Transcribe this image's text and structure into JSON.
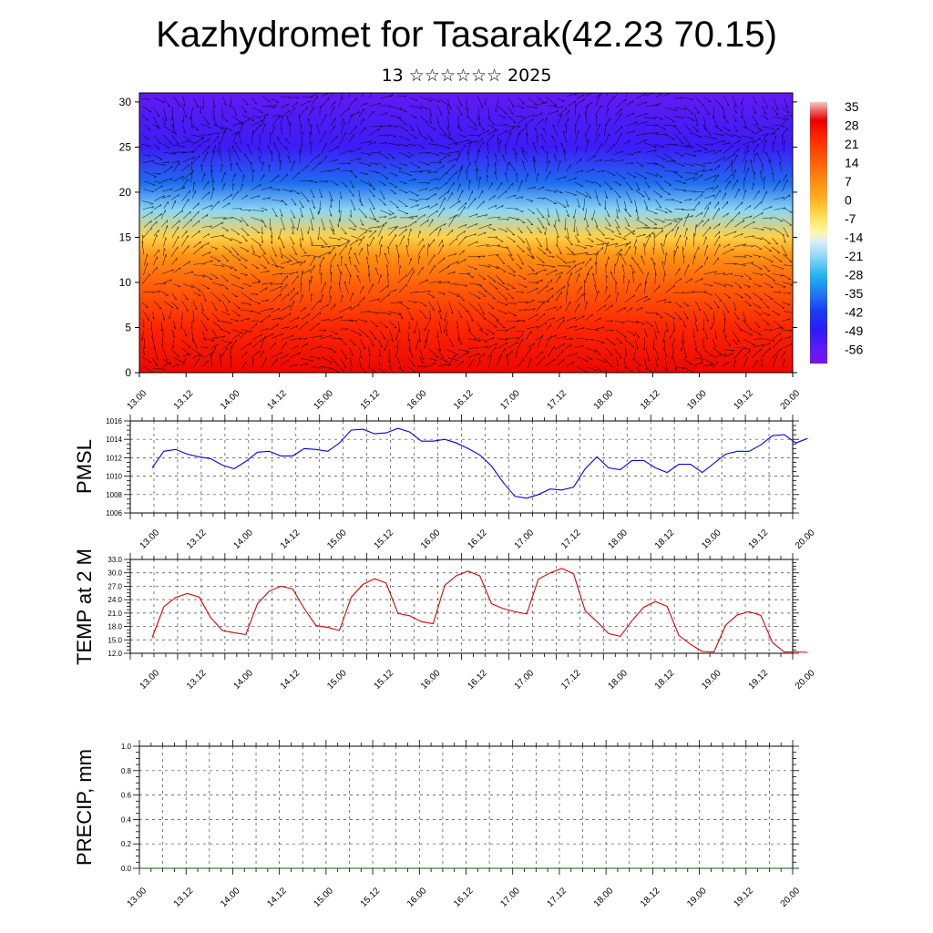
{
  "title": "Kazhydromet for Tasarak(42.23 70.15)",
  "subtitle": "13 ☆☆☆☆☆☆ 2025",
  "colors": {
    "pmsl_line": "#0000ff",
    "temp_line": "#e00000",
    "precip_line": "#006400",
    "arrows": "#000000"
  },
  "chart_data": [
    {
      "type": "heatmap",
      "name_hint": "vertical-cross-section",
      "x_ticks": [
        "13.00",
        "13.12",
        "14.00",
        "14.12",
        "15.00",
        "15.12",
        "16.00",
        "16.12",
        "17.00",
        "17.12",
        "18.00",
        "18.12",
        "19.00",
        "19.12",
        "20.00"
      ],
      "y_ticks": [
        "0",
        "5",
        "10",
        "15",
        "20",
        "25",
        "30"
      ],
      "ylim": [
        0,
        31
      ],
      "colorbar_labels": [
        "35",
        "28",
        "21",
        "14",
        "7",
        "0",
        "-7",
        "-14",
        "-21",
        "-28",
        "-35",
        "-42",
        "-49",
        "-56"
      ],
      "colorbar_range": [
        -60,
        38
      ],
      "overlay": "wind vectors",
      "temperature_profile": [
        {
          "level": 0,
          "value": 30
        },
        {
          "level": 5,
          "value": 25
        },
        {
          "level": 10,
          "value": 15
        },
        {
          "level": 13,
          "value": 7
        },
        {
          "level": 15,
          "value": -3
        },
        {
          "level": 18,
          "value": -20
        },
        {
          "level": 21,
          "value": -35
        },
        {
          "level": 25,
          "value": -50
        },
        {
          "level": 28,
          "value": -52
        },
        {
          "level": 31,
          "value": -56
        }
      ]
    },
    {
      "type": "line",
      "ylabel": "PMSL",
      "ylim": [
        1006,
        1016
      ],
      "y_ticks": [
        "1016",
        "1014",
        "1012",
        "1010",
        "1008",
        "1006"
      ],
      "x_ticks": [
        "13.00",
        "13.12",
        "14.00",
        "14.12",
        "15.00",
        "15.12",
        "16.00",
        "16.12",
        "17.00",
        "17.12",
        "18.00",
        "18.12",
        "19.00",
        "19.12",
        "20.00"
      ],
      "grid": true,
      "x_step_hours": 3,
      "values": [
        1010.9,
        1012.7,
        1012.9,
        1012.4,
        1012.1,
        1011.9,
        1011.2,
        1010.8,
        1011.6,
        1012.6,
        1012.7,
        1012.2,
        1012.2,
        1013.0,
        1012.9,
        1012.7,
        1013.6,
        1015.0,
        1015.1,
        1014.6,
        1014.7,
        1015.2,
        1014.8,
        1013.8,
        1013.8,
        1014.0,
        1013.6,
        1013.0,
        1012.3,
        1011.1,
        1009.3,
        1007.8,
        1007.6,
        1008.0,
        1008.6,
        1008.5,
        1008.8,
        1010.8,
        1012.1,
        1010.9,
        1010.7,
        1011.7,
        1011.7,
        1010.9,
        1010.4,
        1011.3,
        1011.3,
        1010.4,
        1011.4,
        1012.4,
        1012.7,
        1012.7,
        1013.4,
        1014.4,
        1014.5,
        1013.6,
        1014.1
      ]
    },
    {
      "type": "line",
      "ylabel": "TEMP at 2 M",
      "ylim": [
        12,
        33
      ],
      "y_ticks": [
        "33.0",
        "30.0",
        "27.0",
        "24.0",
        "21.0",
        "18.0",
        "15.0",
        "12.0"
      ],
      "x_ticks": [
        "13.00",
        "13.12",
        "14.00",
        "14.12",
        "15.00",
        "15.12",
        "16.00",
        "16.12",
        "17.00",
        "17.12",
        "18.00",
        "18.12",
        "19.00",
        "19.12",
        "20.00"
      ],
      "grid": true,
      "x_step_hours": 3,
      "values": [
        15.5,
        22.4,
        24.5,
        25.4,
        24.6,
        20.0,
        17.1,
        16.6,
        16.2,
        23.1,
        25.9,
        27.0,
        26.4,
        22.0,
        18.2,
        17.8,
        17.1,
        24.5,
        27.4,
        28.7,
        27.7,
        20.9,
        20.4,
        19.1,
        18.6,
        27.2,
        29.4,
        30.4,
        29.3,
        23.1,
        22.0,
        21.3,
        20.8,
        28.6,
        30.0,
        31.0,
        29.8,
        21.5,
        19.1,
        16.4,
        15.8,
        19.3,
        22.3,
        23.6,
        22.5,
        16.0,
        14.0,
        12.4,
        12.3,
        18.3,
        20.6,
        21.3,
        20.5,
        14.4,
        12.3,
        12.3,
        12.2
      ]
    },
    {
      "type": "line",
      "ylabel": "PRECIP, mm",
      "ylim": [
        0,
        1
      ],
      "y_ticks": [
        "1.0",
        "0.8",
        "0.6",
        "0.4",
        "0.2",
        "0.0"
      ],
      "x_ticks": [
        "13.00",
        "13.12",
        "14.00",
        "14.12",
        "15.00",
        "15.12",
        "16.00",
        "16.12",
        "17.00",
        "17.12",
        "18.00",
        "18.12",
        "19.00",
        "19.12",
        "20.00"
      ],
      "grid": true,
      "x_step_hours": 3,
      "values": [
        0,
        0,
        0,
        0,
        0,
        0,
        0,
        0,
        0,
        0,
        0,
        0,
        0,
        0,
        0,
        0,
        0,
        0,
        0,
        0,
        0,
        0,
        0,
        0,
        0,
        0,
        0,
        0,
        0,
        0,
        0,
        0,
        0,
        0,
        0,
        0,
        0,
        0,
        0,
        0,
        0,
        0,
        0,
        0,
        0,
        0,
        0,
        0,
        0,
        0,
        0,
        0,
        0,
        0,
        0,
        0,
        0
      ]
    }
  ]
}
